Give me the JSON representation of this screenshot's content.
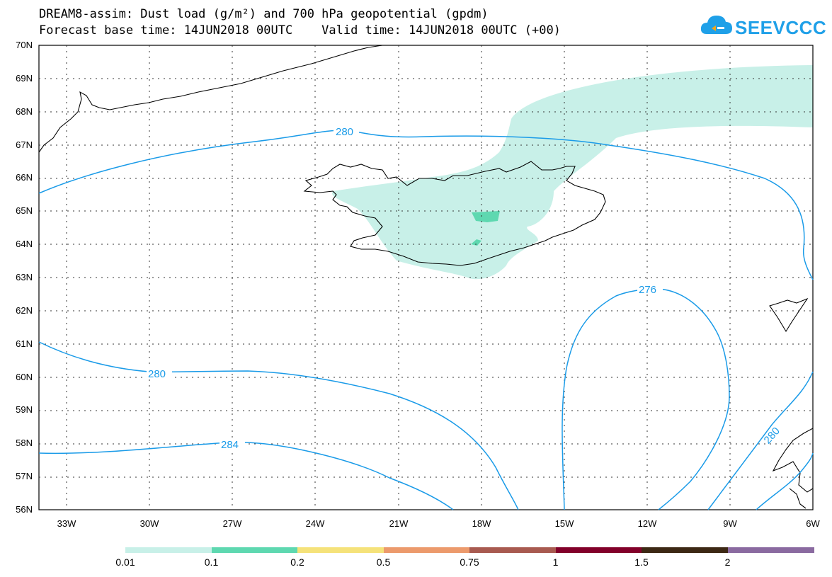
{
  "title": {
    "line1": "DREAM8-assim: Dust load (g/m²) and 700 hPa geopotential (gpdm)",
    "line2": "Forecast base time: 14JUN2018 00UTC    Valid time: 14JUN2018 00UTC (+00)"
  },
  "logo": {
    "text": "SEEVCCC",
    "icon": "cloud-icon",
    "color": "#1fa0e8"
  },
  "lat_labels": [
    "70N",
    "69N",
    "68N",
    "67N",
    "66N",
    "65N",
    "64N",
    "63N",
    "62N",
    "61N",
    "60N",
    "59N",
    "58N",
    "57N",
    "56N"
  ],
  "lon_labels": [
    "33W",
    "30W",
    "27W",
    "24W",
    "21W",
    "18W",
    "15W",
    "12W",
    "9W",
    "6W"
  ],
  "contour_labels": {
    "north_280": "280",
    "south_280": "280",
    "label_284": "284",
    "label_276": "276",
    "east_280": "280"
  },
  "legend": {
    "ticks": [
      "0.01",
      "0.1",
      "0.2",
      "0.5",
      "0.75",
      "1",
      "1.5",
      "2"
    ],
    "colors": [
      "#c8f0e8",
      "#5ed8b0",
      "#f5e27a",
      "#ec9a6c",
      "#a85a50",
      "#82002a",
      "#3c2814",
      "#8a6aa0"
    ]
  },
  "colors": {
    "contour": "#1a9be8",
    "dust_light": "#c8f0e8",
    "dust_mid": "#5ed8b0",
    "coast": "#000000"
  }
}
